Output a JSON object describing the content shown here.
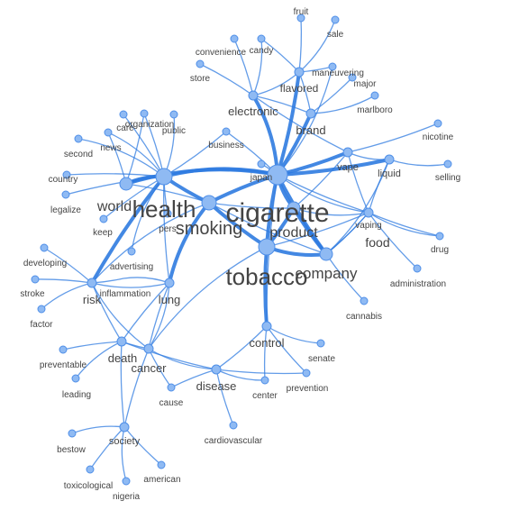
{
  "colors": {
    "node": "#8fbaf3",
    "node_stroke": "#4f8fe8",
    "edge": "#2f7be0",
    "label": "#444444"
  },
  "nodes": [
    {
      "id": "cigarette",
      "label": "cigarette"
    },
    {
      "id": "health",
      "label": "health"
    },
    {
      "id": "smoking",
      "label": "smoking"
    },
    {
      "id": "tobacco",
      "label": "tobacco"
    },
    {
      "id": "product",
      "label": "product"
    },
    {
      "id": "company",
      "label": "company"
    },
    {
      "id": "world",
      "label": "world"
    },
    {
      "id": "brand",
      "label": "brand"
    },
    {
      "id": "electronic",
      "label": "electronic"
    },
    {
      "id": "flavored",
      "label": "flavored"
    },
    {
      "id": "vape",
      "label": "vape"
    },
    {
      "id": "liquid",
      "label": "liquid"
    },
    {
      "id": "vaping",
      "label": "vaping"
    },
    {
      "id": "food",
      "label": "food"
    },
    {
      "id": "risk",
      "label": "risk"
    },
    {
      "id": "lung",
      "label": "lung"
    },
    {
      "id": "death",
      "label": "death"
    },
    {
      "id": "cancer",
      "label": "cancer"
    },
    {
      "id": "disease",
      "label": "disease"
    },
    {
      "id": "control",
      "label": "control"
    },
    {
      "id": "society",
      "label": "society"
    },
    {
      "id": "fruit",
      "label": "fruit"
    },
    {
      "id": "sale",
      "label": "sale"
    },
    {
      "id": "candy",
      "label": "candy"
    },
    {
      "id": "convenience",
      "label": "convenience"
    },
    {
      "id": "store",
      "label": "store"
    },
    {
      "id": "maneuvering",
      "label": "maneuvering"
    },
    {
      "id": "major",
      "label": "major"
    },
    {
      "id": "marlboro",
      "label": "marlboro"
    },
    {
      "id": "nicotine",
      "label": "nicotine"
    },
    {
      "id": "selling",
      "label": "selling"
    },
    {
      "id": "business",
      "label": "business"
    },
    {
      "id": "japan",
      "label": "japan"
    },
    {
      "id": "organization",
      "label": "organization"
    },
    {
      "id": "care",
      "label": "care"
    },
    {
      "id": "public",
      "label": "public"
    },
    {
      "id": "news",
      "label": "news"
    },
    {
      "id": "second",
      "label": "second"
    },
    {
      "id": "country",
      "label": "country"
    },
    {
      "id": "legalize",
      "label": "legalize"
    },
    {
      "id": "keep",
      "label": "keep"
    },
    {
      "id": "pers",
      "label": "pers"
    },
    {
      "id": "advertising",
      "label": "advertising"
    },
    {
      "id": "developing",
      "label": "developing"
    },
    {
      "id": "stroke",
      "label": "stroke"
    },
    {
      "id": "factor",
      "label": "factor"
    },
    {
      "id": "inflammation",
      "label": "inflammation"
    },
    {
      "id": "drug",
      "label": "drug"
    },
    {
      "id": "administration",
      "label": "administration"
    },
    {
      "id": "cannabis",
      "label": "cannabis"
    },
    {
      "id": "preventable",
      "label": "preventable"
    },
    {
      "id": "leading",
      "label": "leading"
    },
    {
      "id": "cause",
      "label": "cause"
    },
    {
      "id": "senate",
      "label": "senate"
    },
    {
      "id": "prevention",
      "label": "prevention"
    },
    {
      "id": "center",
      "label": "center"
    },
    {
      "id": "cardiovascular",
      "label": "cardiovascular"
    },
    {
      "id": "bestow",
      "label": "bestow"
    },
    {
      "id": "american",
      "label": "american"
    },
    {
      "id": "toxicological",
      "label": "toxicological"
    },
    {
      "id": "nigeria",
      "label": "nigeria"
    }
  ],
  "edges": [
    [
      "cigarette",
      "health"
    ],
    [
      "cigarette",
      "smoking"
    ],
    [
      "cigarette",
      "tobacco"
    ],
    [
      "cigarette",
      "product"
    ],
    [
      "cigarette",
      "company"
    ],
    [
      "cigarette",
      "brand"
    ],
    [
      "cigarette",
      "electronic"
    ],
    [
      "cigarette",
      "vape"
    ],
    [
      "cigarette",
      "liquid"
    ],
    [
      "cigarette",
      "world"
    ],
    [
      "cigarette",
      "flavored"
    ],
    [
      "cigarette",
      "japan"
    ],
    [
      "cigarette",
      "vaping"
    ],
    [
      "cigarette",
      "food"
    ],
    [
      "cigarette",
      "business"
    ],
    [
      "cigarette",
      "maneuvering"
    ],
    [
      "cigarette",
      "control"
    ],
    [
      "health",
      "smoking"
    ],
    [
      "health",
      "world"
    ],
    [
      "health",
      "risk"
    ],
    [
      "health",
      "lung"
    ],
    [
      "health",
      "news"
    ],
    [
      "health",
      "care"
    ],
    [
      "health",
      "organization"
    ],
    [
      "health",
      "public"
    ],
    [
      "health",
      "keep"
    ],
    [
      "health",
      "pers"
    ],
    [
      "health",
      "second"
    ],
    [
      "health",
      "country"
    ],
    [
      "health",
      "legalize"
    ],
    [
      "health",
      "advertising"
    ],
    [
      "health",
      "business"
    ],
    [
      "smoking",
      "tobacco"
    ],
    [
      "smoking",
      "lung"
    ],
    [
      "smoking",
      "world"
    ],
    [
      "smoking",
      "product"
    ],
    [
      "smoking",
      "risk"
    ],
    [
      "smoking",
      "company"
    ],
    [
      "tobacco",
      "product"
    ],
    [
      "tobacco",
      "company"
    ],
    [
      "tobacco",
      "control"
    ],
    [
      "tobacco",
      "vaping"
    ],
    [
      "tobacco",
      "cancer"
    ],
    [
      "product",
      "company"
    ],
    [
      "product",
      "vape"
    ],
    [
      "product",
      "food"
    ],
    [
      "company",
      "food"
    ],
    [
      "company",
      "cannabis"
    ],
    [
      "company",
      "liquid"
    ],
    [
      "company",
      "vaping"
    ],
    [
      "brand",
      "flavored"
    ],
    [
      "brand",
      "marlboro"
    ],
    [
      "brand",
      "major"
    ],
    [
      "brand",
      "electronic"
    ],
    [
      "electronic",
      "flavored"
    ],
    [
      "electronic",
      "store"
    ],
    [
      "electronic",
      "convenience"
    ],
    [
      "electronic",
      "candy"
    ],
    [
      "electronic",
      "vape"
    ],
    [
      "flavored",
      "fruit"
    ],
    [
      "flavored",
      "sale"
    ],
    [
      "flavored",
      "candy"
    ],
    [
      "flavored",
      "maneuvering"
    ],
    [
      "vape",
      "liquid"
    ],
    [
      "vape",
      "nicotine"
    ],
    [
      "vape",
      "vaping"
    ],
    [
      "liquid",
      "selling"
    ],
    [
      "liquid",
      "vaping"
    ],
    [
      "vaping",
      "food"
    ],
    [
      "vaping",
      "drug"
    ],
    [
      "food",
      "administration"
    ],
    [
      "food",
      "drug"
    ],
    [
      "risk",
      "lung"
    ],
    [
      "risk",
      "developing"
    ],
    [
      "risk",
      "stroke"
    ],
    [
      "risk",
      "factor"
    ],
    [
      "risk",
      "inflammation"
    ],
    [
      "risk",
      "death"
    ],
    [
      "risk",
      "cancer"
    ],
    [
      "lung",
      "cancer"
    ],
    [
      "lung",
      "death"
    ],
    [
      "lung",
      "inflammation"
    ],
    [
      "death",
      "cancer"
    ],
    [
      "death",
      "preventable"
    ],
    [
      "death",
      "leading"
    ],
    [
      "death",
      "disease"
    ],
    [
      "death",
      "society"
    ],
    [
      "cancer",
      "disease"
    ],
    [
      "cancer",
      "cause"
    ],
    [
      "cancer",
      "society"
    ],
    [
      "cancer",
      "lung"
    ],
    [
      "disease",
      "control"
    ],
    [
      "disease",
      "cardiovascular"
    ],
    [
      "disease",
      "center"
    ],
    [
      "disease",
      "prevention"
    ],
    [
      "disease",
      "cause"
    ],
    [
      "control",
      "senate"
    ],
    [
      "control",
      "prevention"
    ],
    [
      "control",
      "center"
    ],
    [
      "society",
      "bestow"
    ],
    [
      "society",
      "american"
    ],
    [
      "society",
      "toxicological"
    ],
    [
      "society",
      "nigeria"
    ],
    [
      "world",
      "organization"
    ],
    [
      "world",
      "news"
    ]
  ]
}
